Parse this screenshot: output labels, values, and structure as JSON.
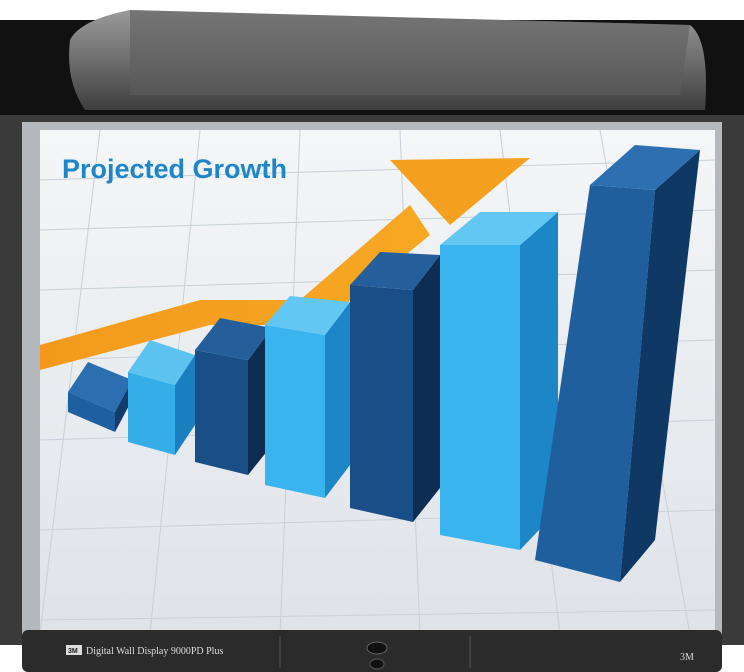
{
  "screen": {
    "title": "Projected Growth"
  },
  "device": {
    "brand": "3M",
    "model": "Digital Wall Display 9000PD Plus",
    "corner_logo": "3M"
  }
}
